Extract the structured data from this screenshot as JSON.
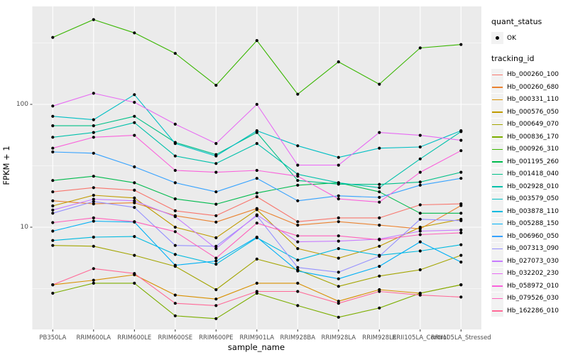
{
  "figure": {
    "background": "#FFFFFF",
    "panel_background": "#EBEBEB",
    "grid_color": "#FFFFFF",
    "point_color": "#000000",
    "tick_color": "#333333",
    "axis_text_color": "#4D4D4D"
  },
  "axes": {
    "x_title": "sample_name",
    "y_title": "FPKM + 1",
    "y_tick_labels": [
      "100",
      "10"
    ],
    "y_tick_values": [
      100,
      10
    ],
    "y_minor_gridlines": [
      3.162,
      31.62,
      316.2
    ]
  },
  "legend": {
    "quant_title": "quant_status",
    "quant_items": [
      {
        "label": "OK",
        "symbol": "point"
      }
    ],
    "tracking_title": "tracking_id"
  },
  "chart_data": {
    "type": "line",
    "title": "",
    "xlabel": "sample_name",
    "ylabel": "FPKM + 1",
    "y_scale": "log10",
    "ylim": [
      1.4,
      700
    ],
    "grid": true,
    "legend_position": "right",
    "categories": [
      "PB350LA",
      "RRIM600LA",
      "RRIM600LE",
      "RRIM600SE",
      "RRIM600PE",
      "RRIM901LA",
      "RRIM928BA",
      "RRIM928LA",
      "RRIM928LE",
      "RRII105LA_Control",
      "RRII105LA_Stressed"
    ],
    "series": [
      {
        "name": "Hb_000260_100",
        "color": "#F8766D",
        "values": [
          19.4,
          21,
          20,
          13.6,
          12.4,
          17.7,
          11.1,
          11.9,
          11.9,
          15.2,
          15.5
        ]
      },
      {
        "name": "Hb_000260_680",
        "color": "#EA8331",
        "values": [
          16.4,
          15.5,
          15.8,
          12.4,
          11,
          14.2,
          10.4,
          11.1,
          10.4,
          9.7,
          15
        ]
      },
      {
        "name": "Hb_000331_110",
        "color": "#D89000",
        "values": [
          3.4,
          3.7,
          4.1,
          2.8,
          2.6,
          3.5,
          3.5,
          2.5,
          3.1,
          2.9,
          3.4
        ]
      },
      {
        "name": "Hb_000576_050",
        "color": "#C09B00",
        "values": [
          14.9,
          18.2,
          17.3,
          10,
          8.2,
          13.9,
          6.7,
          5.6,
          7,
          10,
          11.6
        ]
      },
      {
        "name": "Hb_000649_070",
        "color": "#A3A500",
        "values": [
          7.1,
          7,
          5.9,
          4.8,
          3.1,
          5.5,
          4.5,
          3.3,
          4,
          4.5,
          5.9
        ]
      },
      {
        "name": "Hb_000836_170",
        "color": "#7CAE00",
        "values": [
          2.9,
          3.5,
          3.5,
          1.9,
          1.8,
          2.9,
          2.3,
          1.85,
          2.2,
          2.9,
          3.4
        ]
      },
      {
        "name": "Hb_000926_310",
        "color": "#39B600",
        "values": [
          351,
          490,
          382,
          260,
          143,
          331,
          121,
          222,
          146,
          288,
          307
        ]
      },
      {
        "name": "Hb_001195_260",
        "color": "#00BB4E",
        "values": [
          24,
          26,
          23,
          17,
          15.4,
          19,
          22,
          23,
          19.4,
          13,
          13
        ]
      },
      {
        "name": "Hb_001418_040",
        "color": "#00C087",
        "values": [
          67,
          67,
          80,
          49,
          39,
          59,
          24,
          22.4,
          22.3,
          23.3,
          28
        ]
      },
      {
        "name": "Hb_002928_010",
        "color": "#00C1AB",
        "values": [
          54,
          59,
          71,
          38,
          33,
          48,
          27,
          23,
          21,
          36,
          60
        ]
      },
      {
        "name": "Hb_003579_050",
        "color": "#00BFC4",
        "values": [
          80,
          75,
          120,
          48,
          38,
          61,
          46,
          37,
          44,
          45,
          61
        ]
      },
      {
        "name": "Hb_003878_110",
        "color": "#00BAE0",
        "values": [
          7.8,
          8.3,
          8.4,
          6,
          5,
          8.2,
          5.4,
          6.7,
          5.9,
          6.4,
          7.2
        ]
      },
      {
        "name": "Hb_005288_150",
        "color": "#00B0F6",
        "values": [
          9.3,
          11.2,
          11,
          4.9,
          5.3,
          8.3,
          4.4,
          3.8,
          4.8,
          7.6,
          5.2
        ]
      },
      {
        "name": "Hb_006960_050",
        "color": "#35A2FF",
        "values": [
          41,
          40,
          31,
          23,
          19.4,
          25,
          16.4,
          18,
          17.5,
          22,
          25
        ]
      },
      {
        "name": "Hb_007313_090",
        "color": "#9590FF",
        "values": [
          13,
          16.2,
          14.5,
          7.1,
          7,
          12.4,
          4.7,
          4.3,
          5.8,
          11.6,
          11.3
        ]
      },
      {
        "name": "Hb_027073_030",
        "color": "#C77CFF",
        "values": [
          13.8,
          16.9,
          16.4,
          12.2,
          6.7,
          12.6,
          7.6,
          7.7,
          8,
          9.3,
          9.5
        ]
      },
      {
        "name": "Hb_032202_230",
        "color": "#E76BF3",
        "values": [
          97,
          123,
          104,
          69,
          48,
          100,
          32,
          32,
          59,
          56,
          51
        ]
      },
      {
        "name": "Hb_058972_010",
        "color": "#FA62DB",
        "values": [
          44,
          54,
          56,
          29,
          28,
          29,
          26,
          17,
          16,
          28,
          42
        ]
      },
      {
        "name": "Hb_079526_030",
        "color": "#FF62BC",
        "values": [
          10.9,
          11.9,
          11.1,
          9.2,
          5.6,
          10.8,
          8.5,
          8.5,
          7.9,
          8.7,
          9
        ]
      },
      {
        "name": "Hb_162286_010",
        "color": "#FF6A98",
        "values": [
          3.4,
          4.6,
          4.2,
          2.4,
          2.3,
          3,
          3,
          2.4,
          3,
          2.8,
          2.7
        ]
      }
    ]
  }
}
